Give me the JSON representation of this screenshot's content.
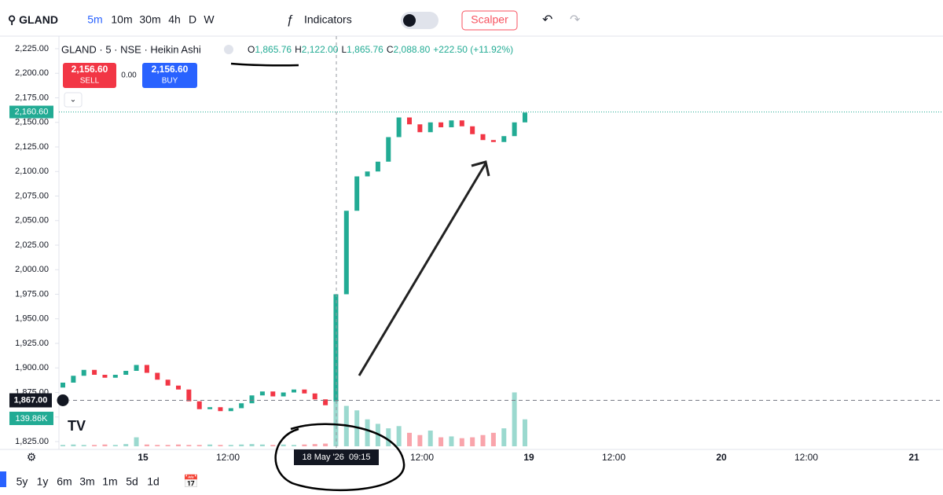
{
  "toolbar": {
    "symbol": "GLAND",
    "intervals": [
      "5m",
      "10m",
      "30m",
      "4h",
      "D",
      "W"
    ],
    "indicators": "Indicators",
    "template": "Scalper"
  },
  "legend": {
    "title": "GLAND · 5 · NSE · Heikin Ashi",
    "o_label": "O",
    "o": "1,865.76",
    "h_label": "H",
    "h": "2,122.00",
    "l_label": "L",
    "l": "1,865.76",
    "c_label": "C",
    "c": "2,088.80",
    "change": "+222.50 (+11.92%)"
  },
  "trade": {
    "sell_price": "2,156.60",
    "sell": "SELL",
    "spread": "0.00",
    "buy_price": "2,156.60",
    "buy": "BUY"
  },
  "ranges": [
    "5y",
    "1y",
    "6m",
    "3m",
    "1m",
    "5d",
    "1d"
  ],
  "chart_data": {
    "type": "candlestick",
    "open": [
      1880,
      1885,
      1892,
      1898,
      1893,
      1890,
      1893,
      1897,
      1903,
      1895,
      1888,
      1882,
      1878,
      1866,
      1858,
      1860,
      1856,
      1859,
      1864,
      1872,
      1876,
      1871,
      1875,
      1878,
      1874,
      1868,
      1866,
      1975,
      2060,
      2095,
      2100,
      2110,
      2135,
      2155,
      2148,
      2140,
      2150,
      2145,
      2152,
      2146,
      2138,
      2132,
      2130,
      2136,
      2150
    ],
    "close": [
      1885,
      1892,
      1898,
      1893,
      1890,
      1893,
      1897,
      1903,
      1895,
      1888,
      1882,
      1878,
      1866,
      1858,
      1860,
      1856,
      1859,
      1864,
      1872,
      1876,
      1871,
      1875,
      1878,
      1874,
      1868,
      1862,
      1975,
      2060,
      2095,
      2100,
      2110,
      2135,
      2155,
      2148,
      2140,
      2150,
      2145,
      2152,
      2146,
      2138,
      2132,
      2130,
      2136,
      2150,
      2160
    ],
    "volume": [
      3,
      4,
      3,
      3,
      4,
      3,
      5,
      20,
      4,
      3,
      3,
      4,
      3,
      3,
      4,
      3,
      3,
      4,
      5,
      4,
      3,
      4,
      3,
      4,
      5,
      6,
      140,
      90,
      80,
      60,
      50,
      40,
      45,
      30,
      25,
      35,
      20,
      22,
      18,
      20,
      25,
      30,
      40,
      120,
      60
    ],
    "up_color": "#22ab94",
    "down_color": "#f23645",
    "ylim": [
      1825,
      2225
    ],
    "yticks": [
      {
        "value": 1825,
        "label": "1,825.00"
      },
      {
        "value": 1850,
        "label": "1,850.00"
      },
      {
        "value": 1875,
        "label": "1,875.00"
      },
      {
        "value": 1900,
        "label": "1,900.00"
      },
      {
        "value": 1925,
        "label": "1,925.00"
      },
      {
        "value": 1950,
        "label": "1,950.00"
      },
      {
        "value": 1975,
        "label": "1,975.00"
      },
      {
        "value": 2000,
        "label": "2,000.00"
      },
      {
        "value": 2025,
        "label": "2,025.00"
      },
      {
        "value": 2050,
        "label": "2,050.00"
      },
      {
        "value": 2075,
        "label": "2,075.00"
      },
      {
        "value": 2100,
        "label": "2,100.00"
      },
      {
        "value": 2125,
        "label": "2,125.00"
      },
      {
        "value": 2150,
        "label": "2,150.00"
      },
      {
        "value": 2175,
        "label": "2,175.00"
      },
      {
        "value": 2200,
        "label": "2,200.00"
      },
      {
        "value": 2225,
        "label": "2,225.00"
      }
    ],
    "xlabels": [
      "15",
      "12:00",
      "12:00",
      "19",
      "12:00",
      "20",
      "12:00",
      "21"
    ],
    "crosshair_label": "18 May '26  09:15",
    "last_price": {
      "value": 2160.6,
      "label": "2,160.60"
    },
    "cursor_price": {
      "value": 1867.0,
      "label": "1,867.00"
    },
    "volume_label": "139.86K"
  }
}
